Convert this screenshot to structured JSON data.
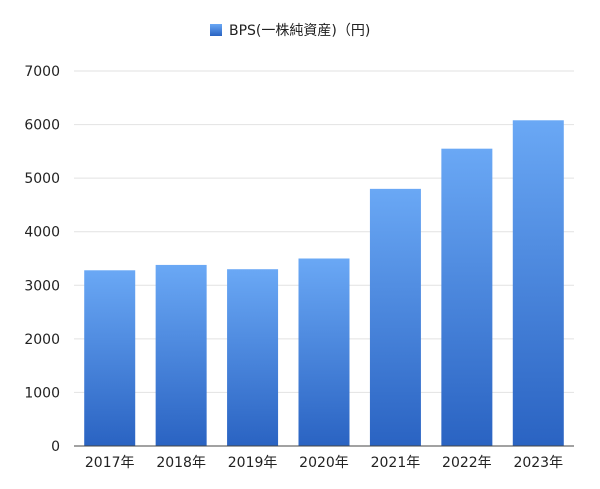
{
  "chart_data": {
    "type": "bar",
    "categories": [
      "2017年",
      "2018年",
      "2019年",
      "2020年",
      "2021年",
      "2022年",
      "2023年"
    ],
    "series": [
      {
        "name": "BPS(一株純資産)（円)",
        "values": [
          3280,
          3380,
          3300,
          3500,
          4800,
          5550,
          6080
        ]
      }
    ],
    "ylim": [
      0,
      7000
    ],
    "yticks": [
      0,
      1000,
      2000,
      3000,
      4000,
      5000,
      6000,
      7000
    ],
    "grid": true,
    "legend_position": "top-center",
    "colors": {
      "bar_top": "#6aa8f5",
      "bar_bottom": "#2a63c2",
      "grid": "#e2e2e2",
      "axis": "#444444"
    }
  }
}
